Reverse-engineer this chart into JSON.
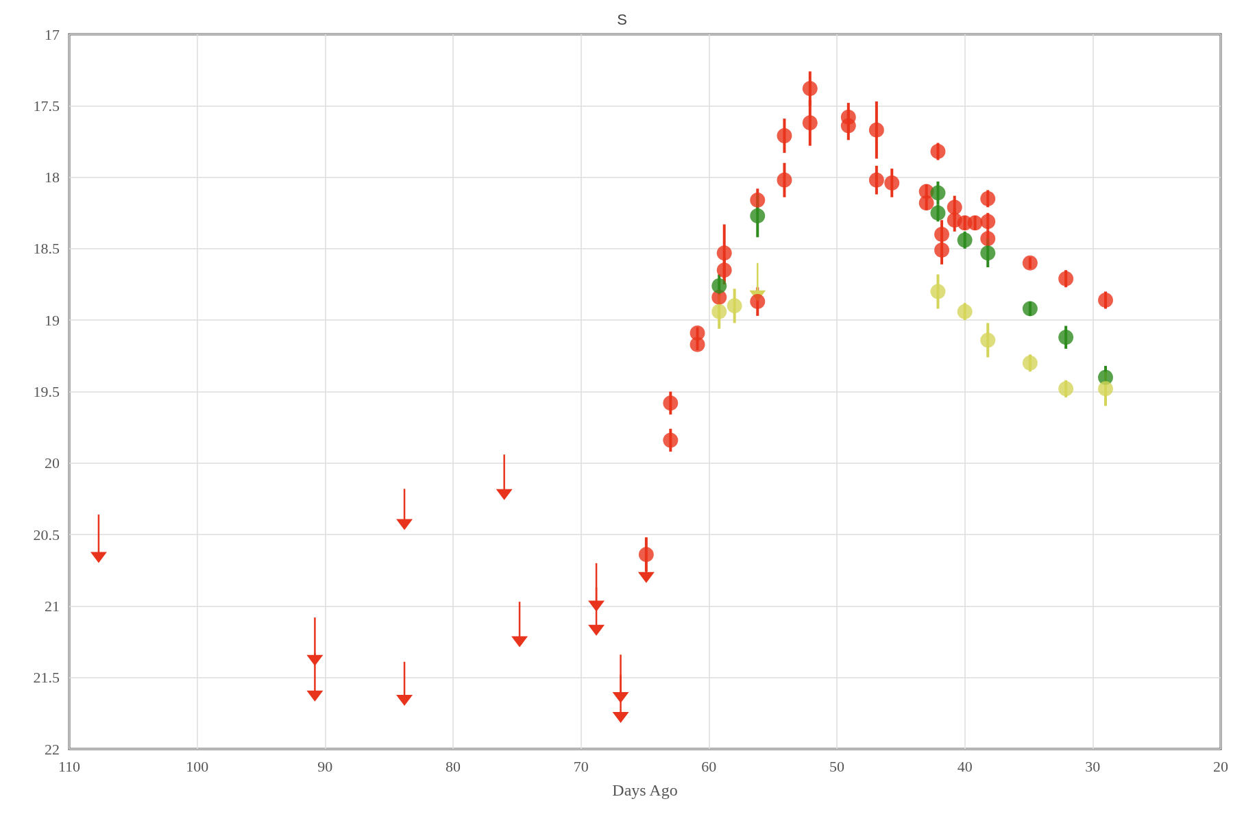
{
  "chart_data": {
    "type": "scatter",
    "title": "S",
    "xlabel": "Days Ago",
    "xlim": [
      110,
      20
    ],
    "xticks": [
      110,
      100,
      90,
      80,
      70,
      60,
      50,
      40,
      30,
      20
    ],
    "ylim": [
      22,
      17
    ],
    "yticks": [
      17,
      17.5,
      18,
      18.5,
      19,
      19.5,
      20,
      20.5,
      21,
      21.5,
      22
    ],
    "grid": true,
    "legend": false,
    "marker": "circle",
    "series": [
      {
        "color": "#e8341c",
        "x": [
          60.9,
          60.9,
          63.0,
          63.0,
          64.9,
          58.8,
          58.8,
          59.2,
          56.2,
          56.2,
          54.1,
          54.1,
          52.1,
          52.1,
          49.1,
          49.1,
          46.9,
          46.9,
          45.7,
          42.1,
          43.0,
          43.0,
          41.8,
          41.8,
          40.8,
          40.8,
          40.0,
          39.2,
          38.2,
          38.2,
          38.2,
          34.9,
          32.1,
          29.0
        ],
        "values": [
          19.09,
          19.17,
          19.58,
          19.84,
          20.64,
          18.53,
          18.65,
          18.84,
          18.16,
          18.87,
          17.71,
          18.02,
          17.38,
          17.62,
          17.58,
          17.64,
          17.67,
          18.02,
          18.04,
          17.82,
          18.1,
          18.18,
          18.4,
          18.51,
          18.21,
          18.3,
          18.32,
          18.32,
          18.15,
          18.31,
          18.43,
          18.6,
          18.71,
          18.86
        ],
        "errors": [
          0.04,
          0.04,
          0.08,
          0.08,
          0.12,
          0.2,
          0.1,
          null,
          0.08,
          0.1,
          0.12,
          0.12,
          0.12,
          0.16,
          0.1,
          0.1,
          0.2,
          0.1,
          0.1,
          0.06,
          0.05,
          0.05,
          0.1,
          0.1,
          0.08,
          0.08,
          0.05,
          0.05,
          0.06,
          0.06,
          0.06,
          0.04,
          0.06,
          0.06
        ]
      },
      {
        "color": "#2e8b1e",
        "x": [
          59.2,
          56.2,
          42.1,
          42.1,
          40.0,
          38.2,
          34.9,
          32.1,
          29.0
        ],
        "values": [
          18.76,
          18.27,
          18.11,
          18.25,
          18.44,
          18.53,
          18.92,
          19.12,
          19.4
        ],
        "errors": [
          0.08,
          0.15,
          0.08,
          0.06,
          0.06,
          0.1,
          0.05,
          0.08,
          0.08
        ]
      },
      {
        "color": "#d4d45a",
        "x": [
          59.2,
          58.0,
          42.1,
          40.0,
          38.2,
          34.9,
          32.1,
          29.0
        ],
        "values": [
          18.94,
          18.9,
          18.8,
          18.94,
          19.14,
          19.3,
          19.48,
          19.48
        ],
        "errors": [
          0.12,
          0.12,
          0.12,
          0.06,
          0.12,
          0.06,
          0.06,
          0.12
        ]
      },
      {
        "color": "#e8341c",
        "marker": "triangle",
        "x": [
          107.7,
          90.8,
          90.8,
          83.8,
          83.8,
          76.0,
          74.8,
          68.8,
          68.8,
          66.9,
          66.9,
          64.9
        ],
        "values": [
          20.66,
          21.38,
          21.63,
          20.43,
          21.66,
          20.22,
          21.25,
          21.0,
          21.17,
          21.64,
          21.78,
          20.8
        ],
        "errors": [
          [
            20.36,
            20.66
          ],
          [
            21.08,
            21.38
          ],
          [
            21.33,
            21.63
          ],
          [
            20.18,
            20.43
          ],
          [
            21.39,
            21.66
          ],
          [
            19.94,
            20.22
          ],
          [
            20.97,
            21.25
          ],
          [
            20.7,
            21.0
          ],
          [
            20.87,
            21.17
          ],
          [
            21.34,
            21.64
          ],
          [
            21.48,
            21.78
          ],
          [
            20.52,
            20.8
          ]
        ]
      },
      {
        "color": "#d4d45a",
        "marker": "triangle",
        "x": [
          56.2
        ],
        "values": [
          18.83
        ],
        "errors": [
          [
            18.6,
            18.83
          ]
        ]
      }
    ]
  }
}
